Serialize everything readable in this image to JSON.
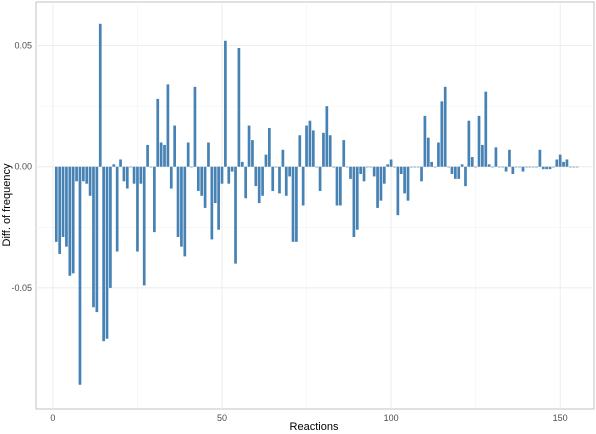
{
  "chart_data": {
    "type": "bar",
    "xlabel": "Reactions",
    "ylabel": "Diff. of frequency",
    "xlim": [
      -5,
      160
    ],
    "ylim": [
      -0.1,
      0.068
    ],
    "x_ticks": [
      0,
      50,
      100,
      150
    ],
    "y_ticks": [
      -0.05,
      0.0,
      0.05
    ],
    "x_tick_labels": [
      "0",
      "50",
      "100",
      "150"
    ],
    "y_tick_labels": [
      "-0.05",
      "0.00",
      "0.05"
    ],
    "grid": true,
    "bar_color": "#4682b4",
    "x": [
      1,
      2,
      3,
      4,
      5,
      6,
      7,
      8,
      9,
      10,
      11,
      12,
      13,
      14,
      15,
      16,
      17,
      18,
      19,
      20,
      21,
      22,
      23,
      24,
      25,
      26,
      27,
      28,
      29,
      30,
      31,
      32,
      33,
      34,
      35,
      36,
      37,
      38,
      39,
      40,
      41,
      42,
      43,
      44,
      45,
      46,
      47,
      48,
      49,
      50,
      51,
      52,
      53,
      54,
      55,
      56,
      57,
      58,
      59,
      60,
      61,
      62,
      63,
      64,
      65,
      66,
      67,
      68,
      69,
      70,
      71,
      72,
      73,
      74,
      75,
      76,
      77,
      78,
      79,
      80,
      81,
      82,
      83,
      84,
      85,
      86,
      87,
      88,
      89,
      90,
      91,
      92,
      93,
      94,
      95,
      96,
      97,
      98,
      99,
      100,
      101,
      102,
      103,
      104,
      105,
      106,
      107,
      108,
      109,
      110,
      111,
      112,
      113,
      114,
      115,
      116,
      117,
      118,
      119,
      120,
      121,
      122,
      123,
      124,
      125,
      126,
      127,
      128,
      129,
      130,
      131,
      132,
      133,
      134,
      135,
      136,
      137,
      138,
      139,
      140,
      141,
      142,
      143,
      144,
      145,
      146,
      147,
      148,
      149,
      150,
      151,
      152,
      153,
      154,
      155
    ],
    "values": [
      -0.031,
      -0.036,
      -0.029,
      -0.033,
      -0.045,
      -0.044,
      -0.006,
      -0.09,
      -0.006,
      -0.007,
      -0.012,
      -0.058,
      -0.06,
      0.059,
      -0.072,
      -0.071,
      -0.05,
      0.001,
      -0.035,
      0.003,
      -0.006,
      -0.009,
      0.0,
      -0.007,
      -0.035,
      -0.007,
      -0.049,
      0.009,
      0.0,
      -0.027,
      0.028,
      0.01,
      0.009,
      0.034,
      -0.009,
      0.017,
      -0.029,
      -0.033,
      -0.037,
      0.01,
      0.0,
      0.033,
      -0.01,
      -0.012,
      -0.017,
      0.01,
      -0.03,
      -0.015,
      -0.026,
      -0.007,
      0.052,
      -0.007,
      -0.002,
      -0.04,
      0.049,
      0.002,
      -0.013,
      0.017,
      0.011,
      -0.008,
      -0.015,
      -0.012,
      0.005,
      0.016,
      -0.01,
      0.0,
      -0.011,
      0.007,
      -0.012,
      -0.004,
      -0.031,
      -0.031,
      0.013,
      -0.016,
      0.017,
      0.019,
      0.015,
      0.0,
      -0.01,
      0.014,
      0.025,
      0.013,
      0.0,
      -0.016,
      -0.016,
      0.011,
      0.0,
      -0.005,
      -0.029,
      -0.026,
      -0.003,
      -0.006,
      0.0,
      0.0,
      -0.004,
      -0.017,
      -0.014,
      -0.007,
      0.001,
      0.003,
      0.0,
      -0.02,
      -0.003,
      -0.011,
      -0.014,
      0.0,
      0.0,
      0.0,
      -0.006,
      0.021,
      0.012,
      0.002,
      0.0,
      0.01,
      0.027,
      0.033,
      0.0,
      -0.003,
      -0.005,
      -0.005,
      0.001,
      -0.008,
      0.019,
      0.004,
      0.0,
      0.021,
      0.009,
      0.031,
      0.001,
      0.0,
      0.008,
      0.0,
      0.0,
      -0.002,
      0.007,
      -0.003,
      0.0,
      0.0,
      -0.002,
      0.0,
      0.0,
      0.0,
      0.0,
      0.007,
      -0.001,
      -0.001,
      -0.001,
      0.0,
      0.003,
      0.005,
      0.002,
      0.003,
      0.0,
      0.0,
      0.0
    ]
  }
}
